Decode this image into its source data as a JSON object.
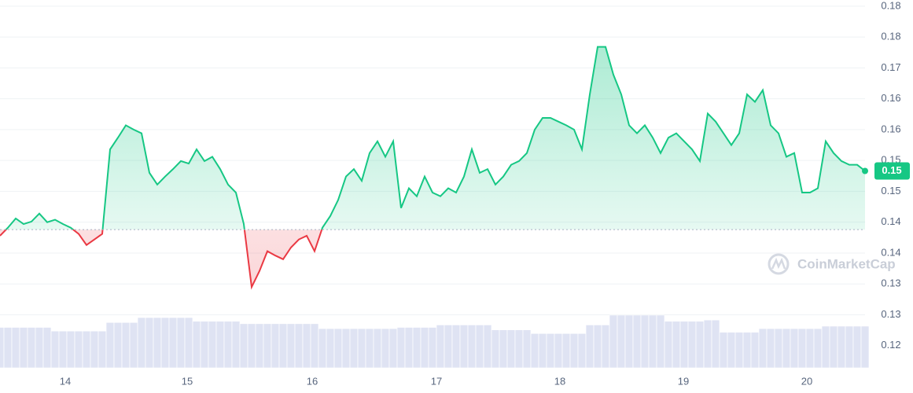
{
  "chart_data": {
    "type": "line",
    "x": [
      0,
      1,
      2,
      3,
      4,
      5,
      6,
      7,
      8,
      9,
      10,
      11,
      12,
      13,
      14,
      15,
      16,
      17,
      18,
      19,
      20,
      21,
      22,
      23,
      24,
      25,
      26,
      27,
      28,
      29,
      30,
      31,
      32,
      33,
      34,
      35,
      36,
      37,
      38,
      39,
      40,
      41,
      42,
      43,
      44,
      45,
      46,
      47,
      48,
      49,
      50,
      51,
      52,
      53,
      54,
      55,
      56,
      57,
      58,
      59,
      60,
      61,
      62,
      63,
      64,
      65,
      66,
      67,
      68,
      69,
      70,
      71,
      72,
      73,
      74,
      75,
      76,
      77,
      78,
      79,
      80,
      81,
      82,
      83,
      84,
      85,
      86,
      87,
      88,
      89,
      90,
      91,
      92,
      93,
      94,
      95,
      96,
      97,
      98,
      99,
      100,
      101,
      102,
      103,
      104,
      105,
      106,
      107,
      108,
      109,
      110
    ],
    "xlim": [
      0,
      110
    ],
    "xticks": [
      {
        "value": 8.3,
        "label": "14"
      },
      {
        "value": 23.8,
        "label": "15"
      },
      {
        "value": 39.7,
        "label": "16"
      },
      {
        "value": 55.5,
        "label": "17"
      },
      {
        "value": 71.2,
        "label": "18"
      },
      {
        "value": 86.9,
        "label": "19"
      },
      {
        "value": 102.6,
        "label": "20"
      }
    ],
    "series": [
      {
        "name": "Price",
        "color": "#16c784",
        "below_color": "#ea3943",
        "values": [
          0.1428,
          0.1441,
          0.1456,
          0.1447,
          0.1451,
          0.1464,
          0.145,
          0.1454,
          0.1447,
          0.1441,
          0.1431,
          0.1413,
          0.1422,
          0.1431,
          0.1568,
          0.1587,
          0.1607,
          0.16,
          0.1594,
          0.153,
          0.1511,
          0.1524,
          0.1536,
          0.1549,
          0.1545,
          0.1568,
          0.1549,
          0.1556,
          0.1536,
          0.1511,
          0.1498,
          0.1447,
          0.1345,
          0.1371,
          0.1403,
          0.1396,
          0.139,
          0.1409,
          0.1422,
          0.1428,
          0.1403,
          0.1441,
          0.146,
          0.1486,
          0.1524,
          0.1536,
          0.1517,
          0.1562,
          0.1581,
          0.1556,
          0.1581,
          0.1473,
          0.1505,
          0.1492,
          0.1524,
          0.1498,
          0.1492,
          0.1505,
          0.1498,
          0.1524,
          0.1568,
          0.153,
          0.1536,
          0.1511,
          0.1524,
          0.1543,
          0.1549,
          0.1562,
          0.16,
          0.1619,
          0.1619,
          0.1613,
          0.1607,
          0.16,
          0.1568,
          0.1657,
          0.1734,
          0.1734,
          0.1689,
          0.1657,
          0.1607,
          0.1594,
          0.1607,
          0.1587,
          0.1562,
          0.1587,
          0.1594,
          0.1581,
          0.1568,
          0.1549,
          0.1626,
          0.1613,
          0.1594,
          0.1575,
          0.1594,
          0.1657,
          0.1645,
          0.1664,
          0.1607,
          0.1594,
          0.1556,
          0.1562,
          0.1498,
          0.1498,
          0.1505,
          0.1581,
          0.1562,
          0.1549,
          0.1543,
          0.1543,
          0.1533
        ]
      }
    ],
    "ylim": [
      0.1214,
      0.181
    ],
    "yticks": [
      {
        "value": 0.18,
        "label": "0.18"
      },
      {
        "value": 0.175,
        "label": "0.18"
      },
      {
        "value": 0.17,
        "label": "0.17"
      },
      {
        "value": 0.165,
        "label": "0.16"
      },
      {
        "value": 0.16,
        "label": "0.16"
      },
      {
        "value": 0.155,
        "label": "0.15"
      },
      {
        "value": 0.15,
        "label": "0.15"
      },
      {
        "value": 0.145,
        "label": "0.14"
      },
      {
        "value": 0.14,
        "label": "0.14"
      },
      {
        "value": 0.135,
        "label": "0.13"
      },
      {
        "value": 0.13,
        "label": "0.13"
      },
      {
        "value": 0.125,
        "label": "0.12"
      }
    ],
    "grid": true,
    "reference_line": 0.1438,
    "last_label": "0.15",
    "volume": {
      "color": "#dfe3f3",
      "ylim": [
        0,
        100
      ],
      "values": [
        66,
        66,
        66,
        66,
        66,
        66,
        66,
        60,
        60,
        60,
        60,
        60,
        60,
        60,
        74,
        74,
        74,
        74,
        82,
        82,
        82,
        82,
        82,
        82,
        82,
        76,
        76,
        76,
        76,
        76,
        76,
        72,
        72,
        72,
        72,
        72,
        72,
        72,
        72,
        72,
        72,
        64,
        64,
        64,
        64,
        64,
        64,
        64,
        64,
        64,
        64,
        66,
        66,
        66,
        66,
        66,
        70,
        70,
        70,
        70,
        70,
        70,
        70,
        62,
        62,
        62,
        62,
        62,
        56,
        56,
        56,
        56,
        56,
        56,
        56,
        70,
        70,
        70,
        86,
        86,
        86,
        86,
        86,
        86,
        86,
        76,
        76,
        76,
        76,
        76,
        78,
        78,
        58,
        58,
        58,
        58,
        58,
        64,
        64,
        64,
        64,
        64,
        64,
        64,
        64,
        68,
        68,
        68,
        68,
        68,
        68
      ]
    },
    "watermark": "CoinMarketCap"
  }
}
